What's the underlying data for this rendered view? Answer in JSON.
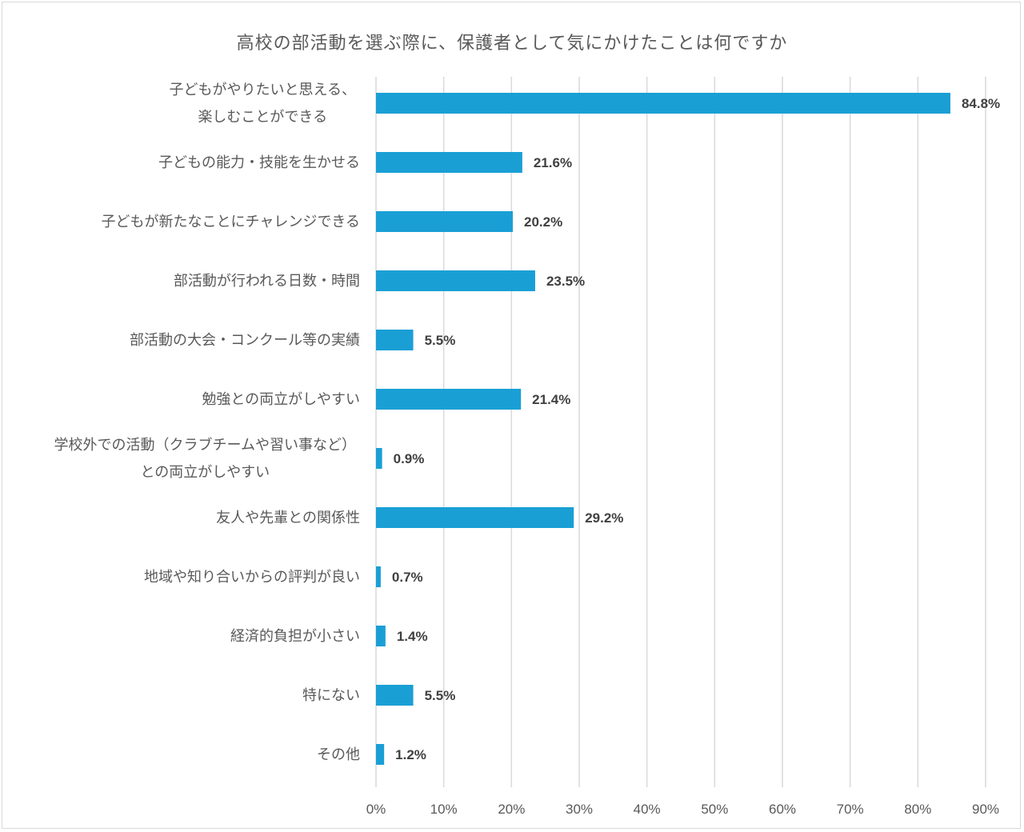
{
  "chart_data": {
    "type": "bar",
    "orientation": "horizontal",
    "title": "高校の部活動を選ぶ際に、保護者として気にかけたことは何ですか",
    "categories": [
      [
        "子どもがやりたいと思える、",
        "楽しむことができる"
      ],
      [
        "子どもの能力・技能を生かせる"
      ],
      [
        "子どもが新たなことにチャレンジできる"
      ],
      [
        "部活動が行われる日数・時間"
      ],
      [
        "部活動の大会・コンクール等の実績"
      ],
      [
        "勉強との両立がしやすい"
      ],
      [
        "学校外での活動（クラブチームや習い事など）",
        "との両立がしやすい"
      ],
      [
        "友人や先輩との関係性"
      ],
      [
        "地域や知り合いからの評判が良い"
      ],
      [
        "経済的負担が小さい"
      ],
      [
        "特にない"
      ],
      [
        "その他"
      ]
    ],
    "values": [
      84.8,
      21.6,
      20.2,
      23.5,
      5.5,
      21.4,
      0.9,
      29.2,
      0.7,
      1.4,
      5.5,
      1.2
    ],
    "value_labels": [
      "84.8%",
      "21.6%",
      "20.2%",
      "23.5%",
      "5.5%",
      "21.4%",
      "0.9%",
      "29.2%",
      "0.7%",
      "1.4%",
      "5.5%",
      "1.2%"
    ],
    "xlim": [
      0,
      90
    ],
    "x_ticks": [
      "0%",
      "10%",
      "20%",
      "30%",
      "40%",
      "50%",
      "60%",
      "70%",
      "80%",
      "90%"
    ],
    "grid": true,
    "legend": "none",
    "bar_color": "#1a9fd5",
    "grid_color": "#d9d9d9"
  }
}
